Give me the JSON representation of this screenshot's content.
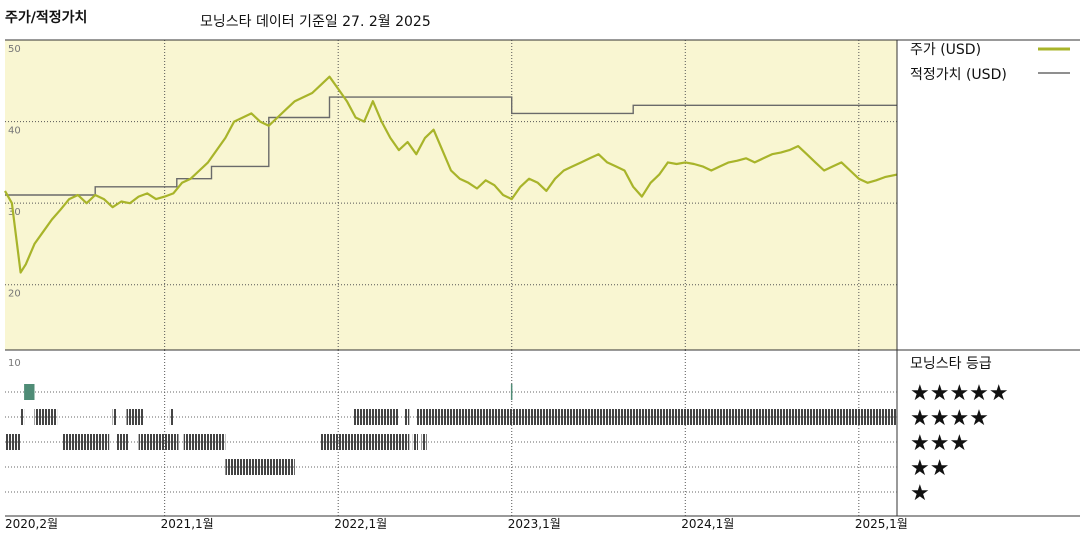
{
  "header": {
    "title": "주가/적정가치",
    "subtitle": "모닝스타 데이터 기준일 27. 2월 2025"
  },
  "legend": {
    "price_label": "주가 (USD)",
    "fair_label": "적정가치 (USD)",
    "rating_title": "모닝스타 등급"
  },
  "colors": {
    "price": "#a8b42a",
    "fair": "#6a6a6a",
    "plot_bg": "#f9f6d2",
    "rating_bar": "#444444",
    "rating_5": "#4f8c76"
  },
  "chart_data": {
    "type": "line",
    "title": "주가/적정가치",
    "subtitle": "모닝스타 데이터 기준일 27. 2월 2025",
    "x_start": 2020.08,
    "x_end": 2025.22,
    "x_ticks": [
      {
        "x": 2020.08,
        "label": "2020,2월"
      },
      {
        "x": 2021.0,
        "label": "2021,1월"
      },
      {
        "x": 2022.0,
        "label": "2022,1월"
      },
      {
        "x": 2023.0,
        "label": "2023,1월"
      },
      {
        "x": 2024.0,
        "label": "2024,1월"
      },
      {
        "x": 2025.0,
        "label": "2025,1월"
      }
    ],
    "y_ticks": [
      {
        "y": 50,
        "label": "50"
      },
      {
        "y": 40,
        "label": "40"
      },
      {
        "y": 30,
        "label": "30"
      },
      {
        "y": 20,
        "label": "20"
      }
    ],
    "ylim": [
      12,
      50
    ],
    "series": [
      {
        "name": "주가 (USD)",
        "points": [
          [
            2020.08,
            31.5
          ],
          [
            2020.12,
            30.0
          ],
          [
            2020.17,
            21.5
          ],
          [
            2020.2,
            22.5
          ],
          [
            2020.25,
            25.0
          ],
          [
            2020.3,
            26.5
          ],
          [
            2020.35,
            28.0
          ],
          [
            2020.4,
            29.2
          ],
          [
            2020.45,
            30.5
          ],
          [
            2020.5,
            31.0
          ],
          [
            2020.55,
            30.0
          ],
          [
            2020.6,
            31.0
          ],
          [
            2020.65,
            30.5
          ],
          [
            2020.7,
            29.5
          ],
          [
            2020.75,
            30.2
          ],
          [
            2020.8,
            30.0
          ],
          [
            2020.85,
            30.8
          ],
          [
            2020.9,
            31.2
          ],
          [
            2020.95,
            30.5
          ],
          [
            2021.0,
            30.8
          ],
          [
            2021.05,
            31.2
          ],
          [
            2021.1,
            32.5
          ],
          [
            2021.15,
            33.0
          ],
          [
            2021.2,
            34.0
          ],
          [
            2021.25,
            35.0
          ],
          [
            2021.3,
            36.5
          ],
          [
            2021.35,
            38.0
          ],
          [
            2021.4,
            40.0
          ],
          [
            2021.45,
            40.5
          ],
          [
            2021.5,
            41.0
          ],
          [
            2021.55,
            40.0
          ],
          [
            2021.6,
            39.5
          ],
          [
            2021.65,
            40.5
          ],
          [
            2021.7,
            41.5
          ],
          [
            2021.75,
            42.5
          ],
          [
            2021.8,
            43.0
          ],
          [
            2021.85,
            43.5
          ],
          [
            2021.9,
            44.5
          ],
          [
            2021.95,
            45.5
          ],
          [
            2022.0,
            44.0
          ],
          [
            2022.05,
            42.5
          ],
          [
            2022.1,
            40.5
          ],
          [
            2022.15,
            40.0
          ],
          [
            2022.2,
            42.5
          ],
          [
            2022.25,
            40.0
          ],
          [
            2022.3,
            38.0
          ],
          [
            2022.35,
            36.5
          ],
          [
            2022.4,
            37.5
          ],
          [
            2022.45,
            36.0
          ],
          [
            2022.5,
            38.0
          ],
          [
            2022.55,
            39.0
          ],
          [
            2022.6,
            36.5
          ],
          [
            2022.65,
            34.0
          ],
          [
            2022.7,
            33.0
          ],
          [
            2022.75,
            32.5
          ],
          [
            2022.8,
            31.8
          ],
          [
            2022.85,
            32.8
          ],
          [
            2022.9,
            32.2
          ],
          [
            2022.95,
            31.0
          ],
          [
            2023.0,
            30.5
          ],
          [
            2023.05,
            32.0
          ],
          [
            2023.1,
            33.0
          ],
          [
            2023.15,
            32.5
          ],
          [
            2023.2,
            31.5
          ],
          [
            2023.25,
            33.0
          ],
          [
            2023.3,
            34.0
          ],
          [
            2023.35,
            34.5
          ],
          [
            2023.4,
            35.0
          ],
          [
            2023.45,
            35.5
          ],
          [
            2023.5,
            36.0
          ],
          [
            2023.55,
            35.0
          ],
          [
            2023.6,
            34.5
          ],
          [
            2023.65,
            34.0
          ],
          [
            2023.7,
            32.0
          ],
          [
            2023.75,
            30.8
          ],
          [
            2023.8,
            32.5
          ],
          [
            2023.85,
            33.5
          ],
          [
            2023.9,
            35.0
          ],
          [
            2023.95,
            34.8
          ],
          [
            2024.0,
            35.0
          ],
          [
            2024.05,
            34.8
          ],
          [
            2024.1,
            34.5
          ],
          [
            2024.15,
            34.0
          ],
          [
            2024.2,
            34.5
          ],
          [
            2024.25,
            35.0
          ],
          [
            2024.3,
            35.2
          ],
          [
            2024.35,
            35.5
          ],
          [
            2024.4,
            35.0
          ],
          [
            2024.45,
            35.5
          ],
          [
            2024.5,
            36.0
          ],
          [
            2024.55,
            36.2
          ],
          [
            2024.6,
            36.5
          ],
          [
            2024.65,
            37.0
          ],
          [
            2024.7,
            36.0
          ],
          [
            2024.75,
            35.0
          ],
          [
            2024.8,
            34.0
          ],
          [
            2024.85,
            34.5
          ],
          [
            2024.9,
            35.0
          ],
          [
            2024.95,
            34.0
          ],
          [
            2025.0,
            33.0
          ],
          [
            2025.05,
            32.5
          ],
          [
            2025.1,
            32.8
          ],
          [
            2025.15,
            33.2
          ],
          [
            2025.22,
            33.5
          ]
        ]
      },
      {
        "name": "적정가치 (USD)",
        "steps": [
          [
            2020.08,
            31.0
          ],
          [
            2020.6,
            32.0
          ],
          [
            2021.07,
            33.0
          ],
          [
            2021.27,
            34.5
          ],
          [
            2021.6,
            40.5
          ],
          [
            2021.95,
            43.0
          ],
          [
            2023.0,
            41.0
          ],
          [
            2023.7,
            42.0
          ],
          [
            2025.22,
            42.0
          ]
        ]
      }
    ],
    "rating_axis_label": "10",
    "ratings": {
      "labels": [
        "★★★★★",
        "★★★★",
        "★★★",
        "★★",
        "★"
      ],
      "periods": [
        {
          "stars": 5,
          "from": 2020.19,
          "to": 2020.25
        },
        {
          "stars": 5,
          "from": 2022.995,
          "to": 2023.0
        },
        {
          "stars": 4,
          "from": 2020.17,
          "to": 2020.19
        },
        {
          "stars": 4,
          "from": 2020.25,
          "to": 2020.38
        },
        {
          "stars": 4,
          "from": 2020.7,
          "to": 2020.72
        },
        {
          "stars": 4,
          "from": 2020.78,
          "to": 2020.88
        },
        {
          "stars": 4,
          "from": 2021.03,
          "to": 2021.05
        },
        {
          "stars": 4,
          "from": 2022.09,
          "to": 2022.35
        },
        {
          "stars": 4,
          "from": 2022.38,
          "to": 2022.41
        },
        {
          "stars": 4,
          "from": 2022.45,
          "to": 2025.22
        },
        {
          "stars": 3,
          "from": 2020.08,
          "to": 2020.17
        },
        {
          "stars": 3,
          "from": 2020.41,
          "to": 2020.68
        },
        {
          "stars": 3,
          "from": 2020.72,
          "to": 2020.79
        },
        {
          "stars": 3,
          "from": 2020.85,
          "to": 2021.08
        },
        {
          "stars": 3,
          "from": 2021.11,
          "to": 2021.35
        },
        {
          "stars": 3,
          "from": 2021.9,
          "to": 2022.41
        },
        {
          "stars": 3,
          "from": 2022.43,
          "to": 2022.46
        },
        {
          "stars": 3,
          "from": 2022.48,
          "to": 2022.51
        },
        {
          "stars": 2,
          "from": 2021.35,
          "to": 2021.75
        }
      ]
    }
  }
}
